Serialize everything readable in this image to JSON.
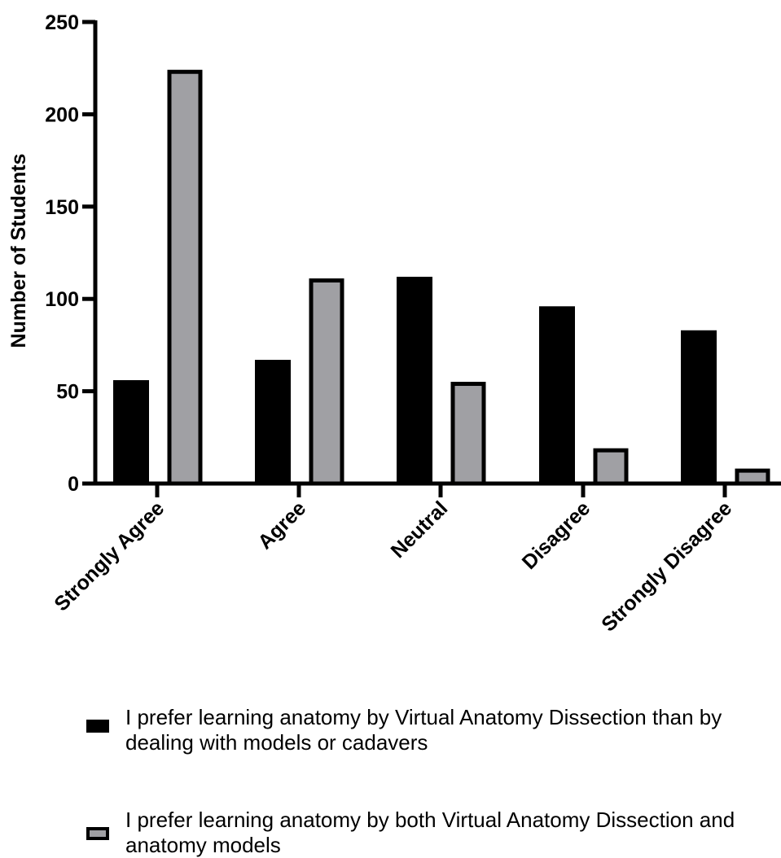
{
  "chart_data": {
    "type": "bar",
    "title": "",
    "xlabel": "",
    "ylabel": "Number of Students",
    "ylim": [
      0,
      250
    ],
    "yticks": [
      0,
      50,
      100,
      150,
      200,
      250
    ],
    "categories": [
      "Strongly Agree",
      "Agree",
      "Neutral",
      "Disagree",
      "Strongly Disagree"
    ],
    "series": [
      {
        "name": "I prefer learning anatomy by Virtual Anatomy Dissection than by dealing with models or cadavers",
        "color": "#000000",
        "values": [
          56,
          67,
          112,
          96,
          83
        ]
      },
      {
        "name": "I prefer learning anatomy by both Virtual Anatomy Dissection and anatomy models",
        "color": "#a0a0a4",
        "values": [
          223,
          110,
          54,
          18,
          7
        ]
      }
    ],
    "grid": false,
    "legend_position": "bottom"
  }
}
